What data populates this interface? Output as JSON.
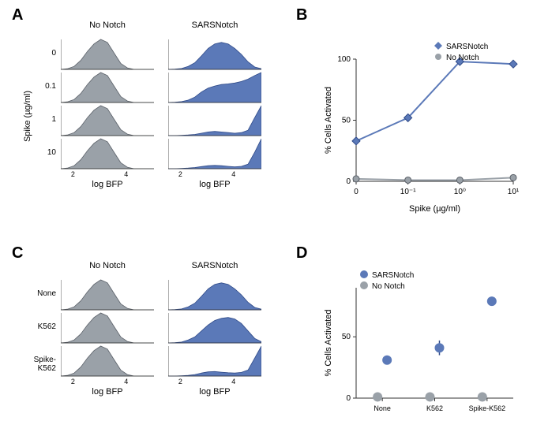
{
  "colors": {
    "no_notch_fill": "#9aa1a8",
    "no_notch_stroke": "#5a6068",
    "sars_fill": "#5b79b8",
    "sars_stroke": "#2f4a88",
    "axis": "#333333",
    "text": "#000000",
    "bg": "#ffffff"
  },
  "panelA": {
    "label": "A",
    "col1_title": "No Notch",
    "col2_title": "SARSNotch",
    "y_axis_label": "Spike (µg/ml)",
    "x_axis_label": "log BFP",
    "x_ticks": [
      "2",
      "4"
    ],
    "rows": [
      {
        "label": "0",
        "noNotch": [
          0,
          0.02,
          0.1,
          0.3,
          0.6,
          0.85,
          1,
          0.9,
          0.55,
          0.2,
          0.05,
          0,
          0,
          0,
          0
        ],
        "sars": [
          0,
          0.01,
          0.03,
          0.1,
          0.22,
          0.45,
          0.7,
          0.85,
          0.9,
          0.85,
          0.7,
          0.5,
          0.25,
          0.08,
          0.02
        ]
      },
      {
        "label": "0.1",
        "noNotch": [
          0,
          0.02,
          0.1,
          0.3,
          0.6,
          0.85,
          1,
          0.9,
          0.55,
          0.2,
          0.05,
          0,
          0,
          0,
          0
        ],
        "sars": [
          0,
          0.01,
          0.03,
          0.08,
          0.18,
          0.35,
          0.48,
          0.55,
          0.6,
          0.62,
          0.65,
          0.7,
          0.78,
          0.9,
          1
        ]
      },
      {
        "label": "1",
        "noNotch": [
          0,
          0.02,
          0.1,
          0.3,
          0.6,
          0.85,
          1,
          0.9,
          0.55,
          0.2,
          0.05,
          0,
          0,
          0,
          0
        ],
        "sars": [
          0,
          0,
          0.01,
          0.02,
          0.04,
          0.08,
          0.12,
          0.14,
          0.12,
          0.1,
          0.08,
          0.1,
          0.18,
          0.6,
          1
        ]
      },
      {
        "label": "10",
        "noNotch": [
          0,
          0.02,
          0.1,
          0.3,
          0.6,
          0.85,
          1,
          0.9,
          0.55,
          0.2,
          0.05,
          0,
          0,
          0,
          0
        ],
        "sars": [
          0,
          0,
          0.01,
          0.02,
          0.04,
          0.07,
          0.1,
          0.11,
          0.1,
          0.08,
          0.06,
          0.08,
          0.15,
          0.55,
          1
        ]
      }
    ]
  },
  "panelB": {
    "label": "B",
    "x_axis_label": "Spike (µg/ml)",
    "y_axis_label": "% Cells Activated",
    "x_ticks_pos": [
      0,
      0.1,
      1,
      10
    ],
    "x_ticks_lbl": [
      "0",
      "10⁻¹",
      "10⁰",
      "10¹"
    ],
    "y_ticks": [
      0,
      50,
      100
    ],
    "legend": [
      {
        "name": "SARSNotch",
        "color": "#5b79b8",
        "marker": "diamond"
      },
      {
        "name": "No Notch",
        "color": "#9aa1a8",
        "marker": "circle"
      }
    ],
    "series": {
      "sars": [
        {
          "x": 0,
          "y": 33
        },
        {
          "x": 0.1,
          "y": 52
        },
        {
          "x": 1,
          "y": 98
        },
        {
          "x": 10,
          "y": 96
        }
      ],
      "noNotch": [
        {
          "x": 0,
          "y": 2
        },
        {
          "x": 0.1,
          "y": 1
        },
        {
          "x": 1,
          "y": 1
        },
        {
          "x": 10,
          "y": 3
        }
      ]
    }
  },
  "panelC": {
    "label": "C",
    "col1_title": "No Notch",
    "col2_title": "SARSNotch",
    "x_axis_label": "log BFP",
    "x_ticks": [
      "2",
      "4"
    ],
    "rows": [
      {
        "label": "None",
        "noNotch": [
          0,
          0.02,
          0.1,
          0.3,
          0.6,
          0.85,
          1,
          0.9,
          0.55,
          0.2,
          0.05,
          0,
          0,
          0,
          0
        ],
        "sars": [
          0,
          0.01,
          0.03,
          0.1,
          0.22,
          0.45,
          0.7,
          0.85,
          0.9,
          0.85,
          0.7,
          0.5,
          0.25,
          0.08,
          0.02
        ]
      },
      {
        "label": "K562",
        "noNotch": [
          0,
          0.02,
          0.1,
          0.3,
          0.6,
          0.85,
          1,
          0.9,
          0.55,
          0.2,
          0.05,
          0,
          0,
          0,
          0
        ],
        "sars": [
          0,
          0.01,
          0.03,
          0.1,
          0.2,
          0.4,
          0.6,
          0.75,
          0.82,
          0.85,
          0.8,
          0.65,
          0.4,
          0.15,
          0.04
        ]
      },
      {
        "label": "Spike-K562",
        "noNotch": [
          0,
          0.02,
          0.1,
          0.3,
          0.6,
          0.85,
          1,
          0.9,
          0.55,
          0.2,
          0.05,
          0,
          0,
          0,
          0
        ],
        "sars": [
          0,
          0,
          0.01,
          0.02,
          0.05,
          0.1,
          0.14,
          0.15,
          0.13,
          0.11,
          0.1,
          0.12,
          0.2,
          0.6,
          1
        ]
      }
    ]
  },
  "panelD": {
    "label": "D",
    "y_axis_label": "% Cells Activated",
    "x_ticks": [
      "None",
      "K562",
      "Spike-K562"
    ],
    "y_ticks": [
      0,
      50
    ],
    "legend": [
      {
        "name": "SARSNotch",
        "color": "#5b79b8"
      },
      {
        "name": "No Notch",
        "color": "#9aa1a8"
      }
    ],
    "series": {
      "sars": [
        {
          "x": "None",
          "y": 31,
          "err": 3
        },
        {
          "x": "K562",
          "y": 41,
          "err": 6
        },
        {
          "x": "Spike-K562",
          "y": 79,
          "err": 3
        }
      ],
      "noNotch": [
        {
          "x": "None",
          "y": 1,
          "err": 1
        },
        {
          "x": "K562",
          "y": 1,
          "err": 1
        },
        {
          "x": "Spike-K562",
          "y": 1,
          "err": 1
        }
      ]
    }
  }
}
